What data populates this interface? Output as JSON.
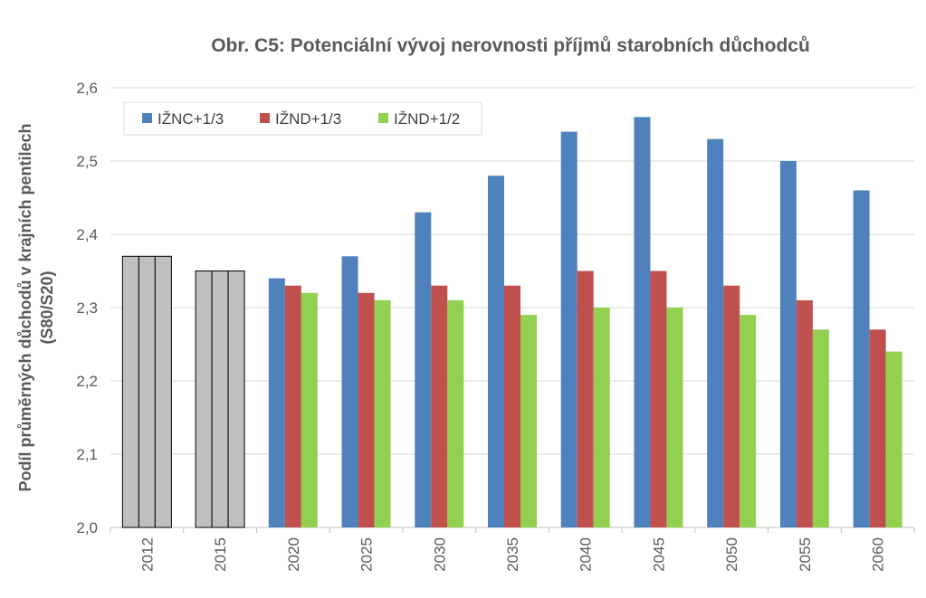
{
  "chart_data": {
    "type": "bar",
    "title": "Obr. C5: Potenciální vývoj nerovnosti příjmů starobních důchodců",
    "ylabel_line1": "Podíl průměrných důchodů v krajních pentilech",
    "ylabel_line2": "(S80/S20)",
    "xlabel": "",
    "ylim": [
      2.0,
      2.6
    ],
    "yticks": [
      "2,0",
      "2,1",
      "2,2",
      "2,3",
      "2,4",
      "2,5",
      "2,6"
    ],
    "categories": [
      "2012",
      "2015",
      "2020",
      "2025",
      "2030",
      "2035",
      "2040",
      "2045",
      "2050",
      "2055",
      "2060"
    ],
    "legend_position": "top-left",
    "grid": true,
    "historical_color": "#bfbfbf",
    "series": [
      {
        "name": "IŽNC+1/3",
        "color": "#4f81bd",
        "values": [
          2.37,
          2.35,
          2.34,
          2.37,
          2.43,
          2.48,
          2.54,
          2.56,
          2.53,
          2.5,
          2.46
        ]
      },
      {
        "name": "IŽND+1/3",
        "color": "#c0504d",
        "values": [
          2.37,
          2.35,
          2.33,
          2.32,
          2.33,
          2.33,
          2.35,
          2.35,
          2.33,
          2.31,
          2.27
        ]
      },
      {
        "name": "IŽND+1/2",
        "color": "#92d050",
        "values": [
          2.37,
          2.35,
          2.32,
          2.31,
          2.31,
          2.29,
          2.3,
          2.3,
          2.29,
          2.27,
          2.24
        ]
      }
    ],
    "historical_categories": 2
  }
}
